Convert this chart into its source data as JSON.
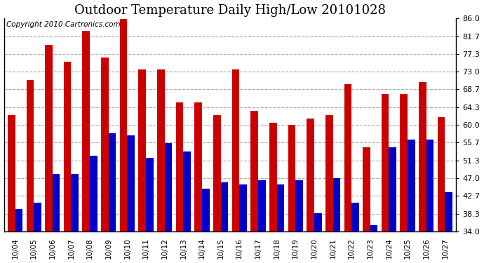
{
  "title": "Outdoor Temperature Daily High/Low 20101028",
  "copyright": "Copyright 2010 Cartronics.com",
  "categories": [
    "10/04",
    "10/05",
    "10/06",
    "10/07",
    "10/08",
    "10/09",
    "10/10",
    "10/11",
    "10/12",
    "10/13",
    "10/14",
    "10/15",
    "10/16",
    "10/17",
    "10/18",
    "10/19",
    "10/20",
    "10/21",
    "10/22",
    "10/23",
    "10/24",
    "10/25",
    "10/26",
    "10/27"
  ],
  "highs": [
    62.5,
    71.0,
    79.5,
    75.5,
    83.0,
    76.5,
    87.0,
    73.5,
    73.5,
    65.5,
    65.5,
    62.5,
    73.5,
    63.5,
    60.5,
    60.0,
    61.5,
    62.5,
    70.0,
    54.5,
    67.5,
    67.5,
    70.5,
    62.0
  ],
  "lows": [
    39.5,
    41.0,
    48.0,
    48.0,
    52.5,
    58.0,
    57.5,
    52.0,
    55.5,
    53.5,
    44.5,
    46.0,
    45.5,
    46.5,
    45.5,
    46.5,
    38.5,
    47.0,
    41.0,
    35.5,
    54.5,
    56.5,
    56.5,
    43.5
  ],
  "high_color": "#cc0000",
  "low_color": "#0000cc",
  "ylim": [
    34.0,
    86.0
  ],
  "yticks": [
    34.0,
    38.3,
    42.7,
    47.0,
    51.3,
    55.7,
    60.0,
    64.3,
    68.7,
    73.0,
    77.3,
    81.7,
    86.0
  ],
  "background_color": "#ffffff",
  "plot_background": "#ffffff",
  "grid_color": "#aaaaaa",
  "title_fontsize": 13,
  "copyright_fontsize": 7.5
}
